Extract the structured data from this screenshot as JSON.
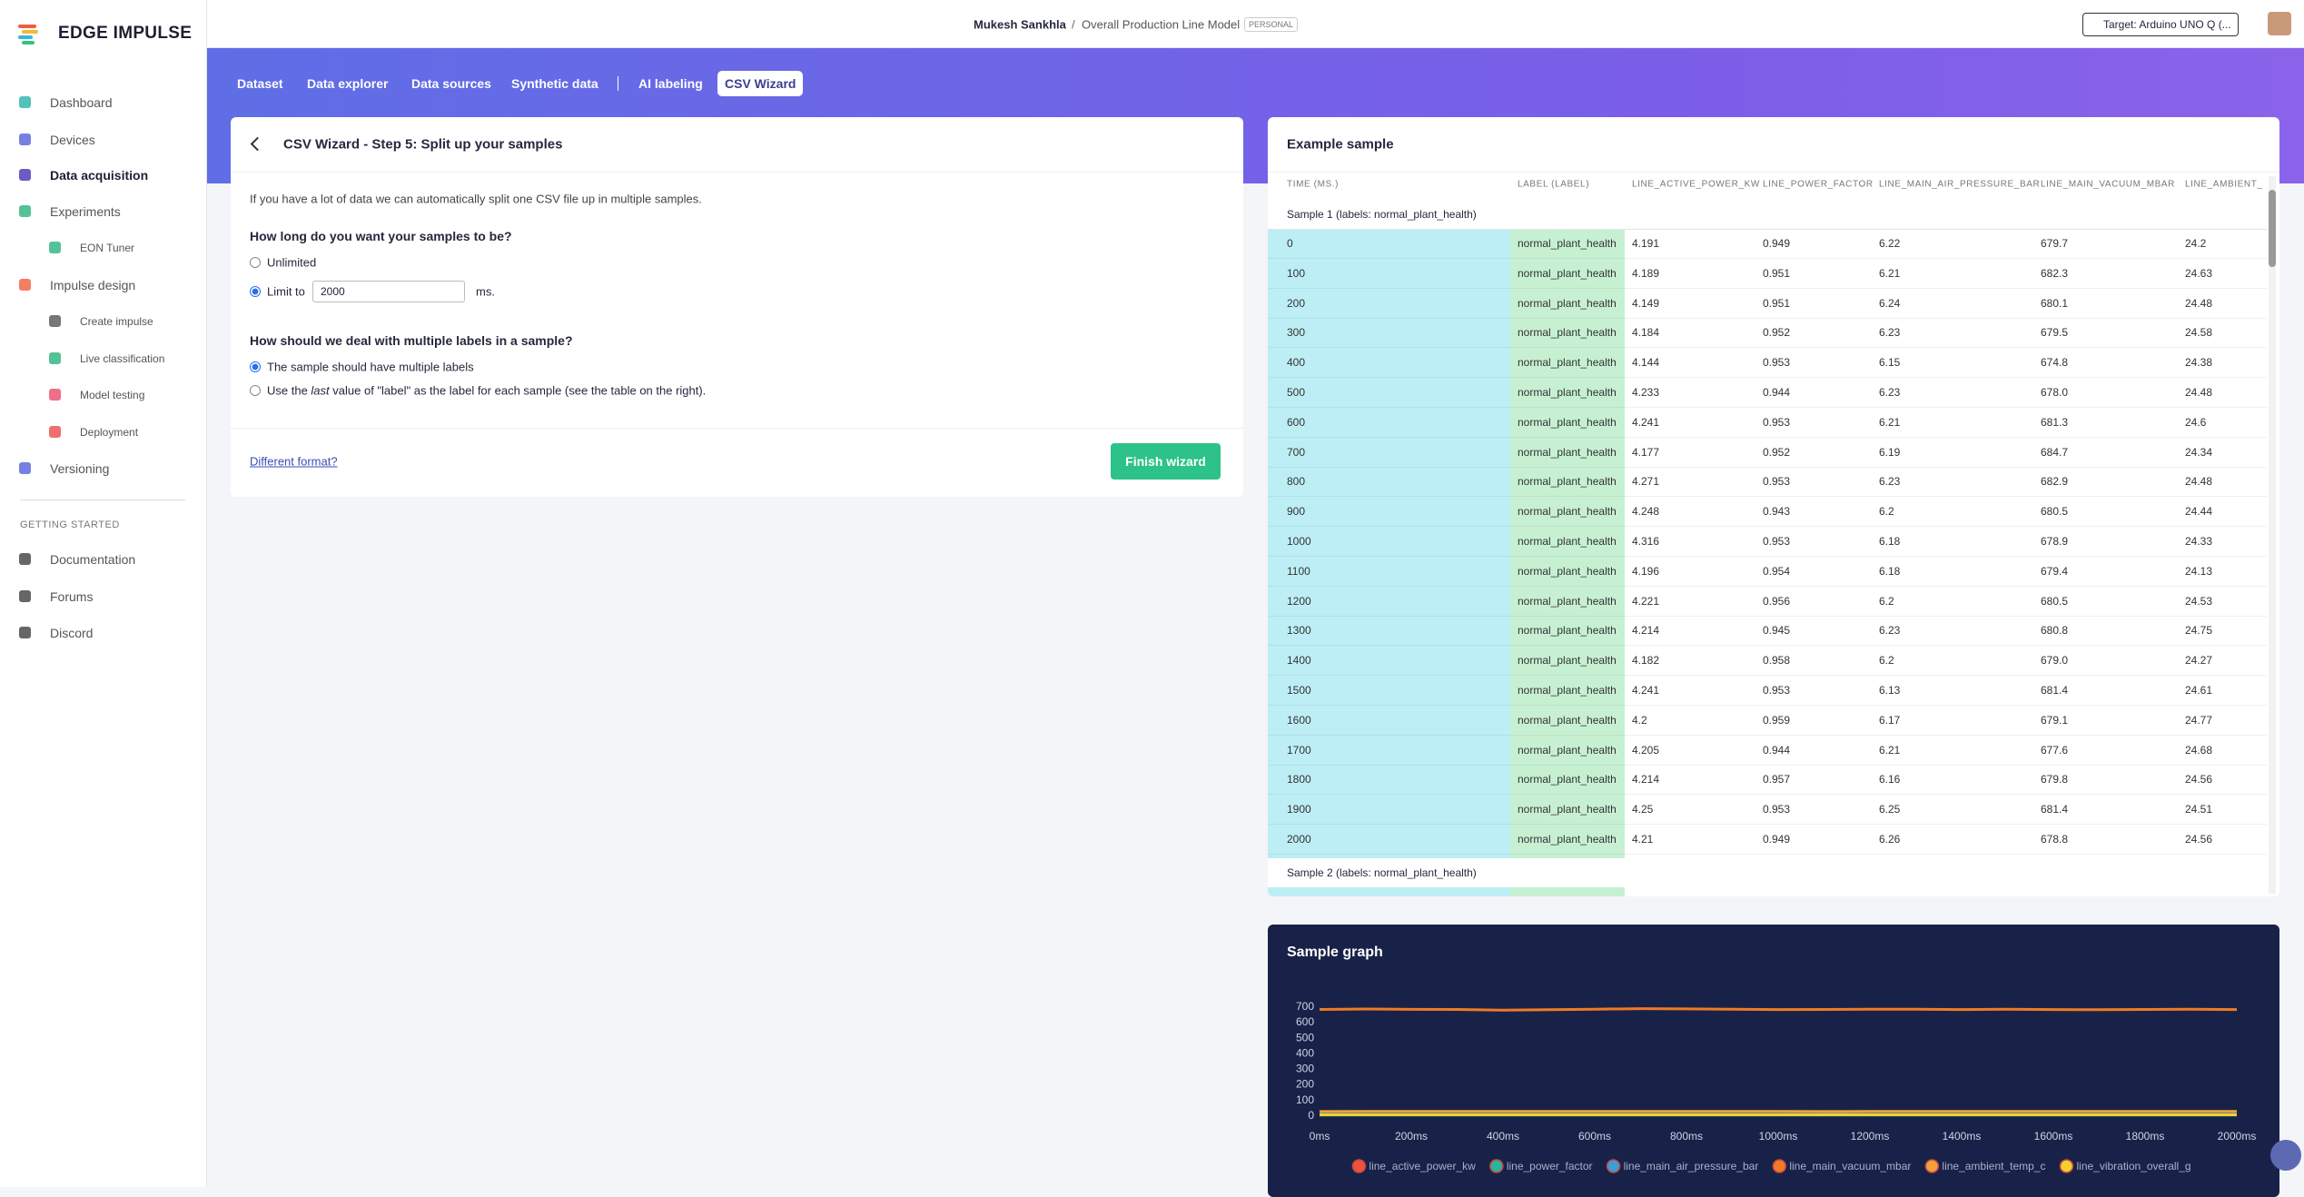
{
  "topbar": {
    "brand": "EDGE IMPULSE",
    "user": "Mukesh Sankhla",
    "separator": "/",
    "project": "Overall Production Line Model",
    "badge": "PERSONAL",
    "target": "Target: Arduino UNO Q (..."
  },
  "sidebar": {
    "items": [
      "Dashboard",
      "Devices",
      "Data acquisition",
      "Experiments",
      "EON Tuner",
      "Impulse design",
      "Create impulse",
      "Live classification",
      "Model testing",
      "Deployment",
      "Versioning"
    ],
    "section": "GETTING STARTED",
    "links": [
      "Documentation",
      "Forums",
      "Discord"
    ]
  },
  "tabs": [
    "Dataset",
    "Data explorer",
    "Data sources",
    "Synthetic data",
    "AI labeling",
    "CSV Wizard"
  ],
  "wizard": {
    "title": "CSV Wizard - Step 5: Split up your samples",
    "intro": "If you have a lot of data we can automatically split one CSV file up in multiple samples.",
    "q1": "How long do you want your samples to be?",
    "opt_unlimited": "Unlimited",
    "opt_limit": "Limit to",
    "limit_value": "2000",
    "unit": "ms.",
    "q2": "How should we deal with multiple labels in a sample?",
    "opt_multi": "The sample should have multiple labels",
    "opt_last": [
      "Use the ",
      "last",
      " value of \"label\" as the label for each sample (see the table on the right)."
    ],
    "link": "Different format?",
    "button": "Finish wizard"
  },
  "example": {
    "title": "Example sample",
    "columns": [
      "TIME (MS.)",
      "LABEL (LABEL)",
      "LINE_ACTIVE_POWER_KW",
      "LINE_POWER_FACTOR",
      "LINE_MAIN_AIR_PRESSURE_BAR",
      "LINE_MAIN_VACUUM_MBAR",
      "LINE_AMBIENT_TEMP_C"
    ],
    "groups": [
      {
        "label": "Sample 1 (labels: normal_plant_health)",
        "rows": [
          [
            "0",
            "normal_plant_health",
            "4.191",
            "0.949",
            "6.22",
            "679.7",
            "24.2"
          ],
          [
            "100",
            "normal_plant_health",
            "4.189",
            "0.951",
            "6.21",
            "682.3",
            "24.63"
          ],
          [
            "200",
            "normal_plant_health",
            "4.149",
            "0.951",
            "6.24",
            "680.1",
            "24.48"
          ],
          [
            "300",
            "normal_plant_health",
            "4.184",
            "0.952",
            "6.23",
            "679.5",
            "24.58"
          ],
          [
            "400",
            "normal_plant_health",
            "4.144",
            "0.953",
            "6.15",
            "674.8",
            "24.38"
          ],
          [
            "500",
            "normal_plant_health",
            "4.233",
            "0.944",
            "6.23",
            "678.0",
            "24.48"
          ],
          [
            "600",
            "normal_plant_health",
            "4.241",
            "0.953",
            "6.21",
            "681.3",
            "24.6"
          ],
          [
            "700",
            "normal_plant_health",
            "4.177",
            "0.952",
            "6.19",
            "684.7",
            "24.34"
          ],
          [
            "800",
            "normal_plant_health",
            "4.271",
            "0.953",
            "6.23",
            "682.9",
            "24.48"
          ],
          [
            "900",
            "normal_plant_health",
            "4.248",
            "0.943",
            "6.2",
            "680.5",
            "24.44"
          ],
          [
            "1000",
            "normal_plant_health",
            "4.316",
            "0.953",
            "6.18",
            "678.9",
            "24.33"
          ],
          [
            "1100",
            "normal_plant_health",
            "4.196",
            "0.954",
            "6.18",
            "679.4",
            "24.13"
          ],
          [
            "1200",
            "normal_plant_health",
            "4.221",
            "0.956",
            "6.2",
            "680.5",
            "24.53"
          ],
          [
            "1300",
            "normal_plant_health",
            "4.214",
            "0.945",
            "6.23",
            "680.8",
            "24.75"
          ],
          [
            "1400",
            "normal_plant_health",
            "4.182",
            "0.958",
            "6.2",
            "679.0",
            "24.27"
          ],
          [
            "1500",
            "normal_plant_health",
            "4.241",
            "0.953",
            "6.13",
            "681.4",
            "24.61"
          ],
          [
            "1600",
            "normal_plant_health",
            "4.2",
            "0.959",
            "6.17",
            "679.1",
            "24.77"
          ],
          [
            "1700",
            "normal_plant_health",
            "4.205",
            "0.944",
            "6.21",
            "677.6",
            "24.68"
          ],
          [
            "1800",
            "normal_plant_health",
            "4.214",
            "0.957",
            "6.16",
            "679.8",
            "24.56"
          ],
          [
            "1900",
            "normal_plant_health",
            "4.25",
            "0.953",
            "6.25",
            "681.4",
            "24.51"
          ],
          [
            "2000",
            "normal_plant_health",
            "4.21",
            "0.949",
            "6.26",
            "678.8",
            "24.56"
          ]
        ]
      },
      {
        "label": "Sample 2 (labels: normal_plant_health)"
      }
    ]
  },
  "chart_data": {
    "type": "line",
    "title": "Sample graph",
    "x": [
      0,
      100,
      200,
      300,
      400,
      500,
      600,
      700,
      800,
      900,
      1000,
      1100,
      1200,
      1300,
      1400,
      1500,
      1600,
      1700,
      1800,
      1900,
      2000
    ],
    "xlim": [
      0,
      2000
    ],
    "xticks": [
      {
        "value": 0,
        "label": "0ms"
      },
      {
        "value": 200,
        "label": "200ms"
      },
      {
        "value": 400,
        "label": "400ms"
      },
      {
        "value": 600,
        "label": "600ms"
      },
      {
        "value": 800,
        "label": "800ms"
      },
      {
        "value": 1000,
        "label": "1000ms"
      },
      {
        "value": 1200,
        "label": "1200ms"
      },
      {
        "value": 1400,
        "label": "1400ms"
      },
      {
        "value": 1600,
        "label": "1600ms"
      },
      {
        "value": 1800,
        "label": "1800ms"
      },
      {
        "value": 2000,
        "label": "2000ms"
      }
    ],
    "ylim": [
      0,
      700
    ],
    "yticks": [
      0,
      100,
      200,
      300,
      400,
      500,
      600,
      700
    ],
    "series": [
      {
        "name": "line_active_power_kw",
        "color": "#e8553a",
        "values": [
          4.191,
          4.189,
          4.149,
          4.184,
          4.144,
          4.233,
          4.241,
          4.177,
          4.271,
          4.248,
          4.316,
          4.196,
          4.221,
          4.214,
          4.182,
          4.241,
          4.2,
          4.205,
          4.214,
          4.25,
          4.21
        ]
      },
      {
        "name": "line_power_factor",
        "color": "#2bb39c",
        "values": [
          0.949,
          0.951,
          0.951,
          0.952,
          0.953,
          0.944,
          0.953,
          0.952,
          0.953,
          0.943,
          0.953,
          0.954,
          0.956,
          0.945,
          0.958,
          0.953,
          0.959,
          0.944,
          0.957,
          0.953,
          0.949
        ]
      },
      {
        "name": "line_main_air_pressure_bar",
        "color": "#3a9fd6",
        "values": [
          6.22,
          6.21,
          6.24,
          6.23,
          6.15,
          6.23,
          6.21,
          6.19,
          6.23,
          6.2,
          6.18,
          6.18,
          6.2,
          6.23,
          6.2,
          6.13,
          6.17,
          6.21,
          6.16,
          6.25,
          6.26
        ]
      },
      {
        "name": "line_main_vacuum_mbar",
        "color": "#f07a26",
        "values": [
          679.7,
          682.3,
          680.1,
          679.5,
          674.8,
          678.0,
          681.3,
          684.7,
          682.9,
          680.5,
          678.9,
          679.4,
          680.5,
          680.8,
          679.0,
          681.4,
          679.1,
          677.6,
          679.8,
          681.4,
          678.8
        ]
      },
      {
        "name": "line_ambient_temp_c",
        "color": "#f2a13a",
        "values": [
          24.2,
          24.63,
          24.48,
          24.58,
          24.38,
          24.48,
          24.6,
          24.34,
          24.48,
          24.44,
          24.33,
          24.13,
          24.53,
          24.75,
          24.27,
          24.61,
          24.77,
          24.68,
          24.56,
          24.51,
          24.56
        ]
      },
      {
        "name": "line_vibration_overall_g",
        "color": "#f2d22a",
        "values": [
          3,
          3,
          3,
          3,
          3,
          3,
          3,
          3,
          3,
          3,
          3,
          3,
          3,
          3,
          3,
          3,
          3,
          3,
          3,
          3,
          3
        ]
      }
    ]
  }
}
